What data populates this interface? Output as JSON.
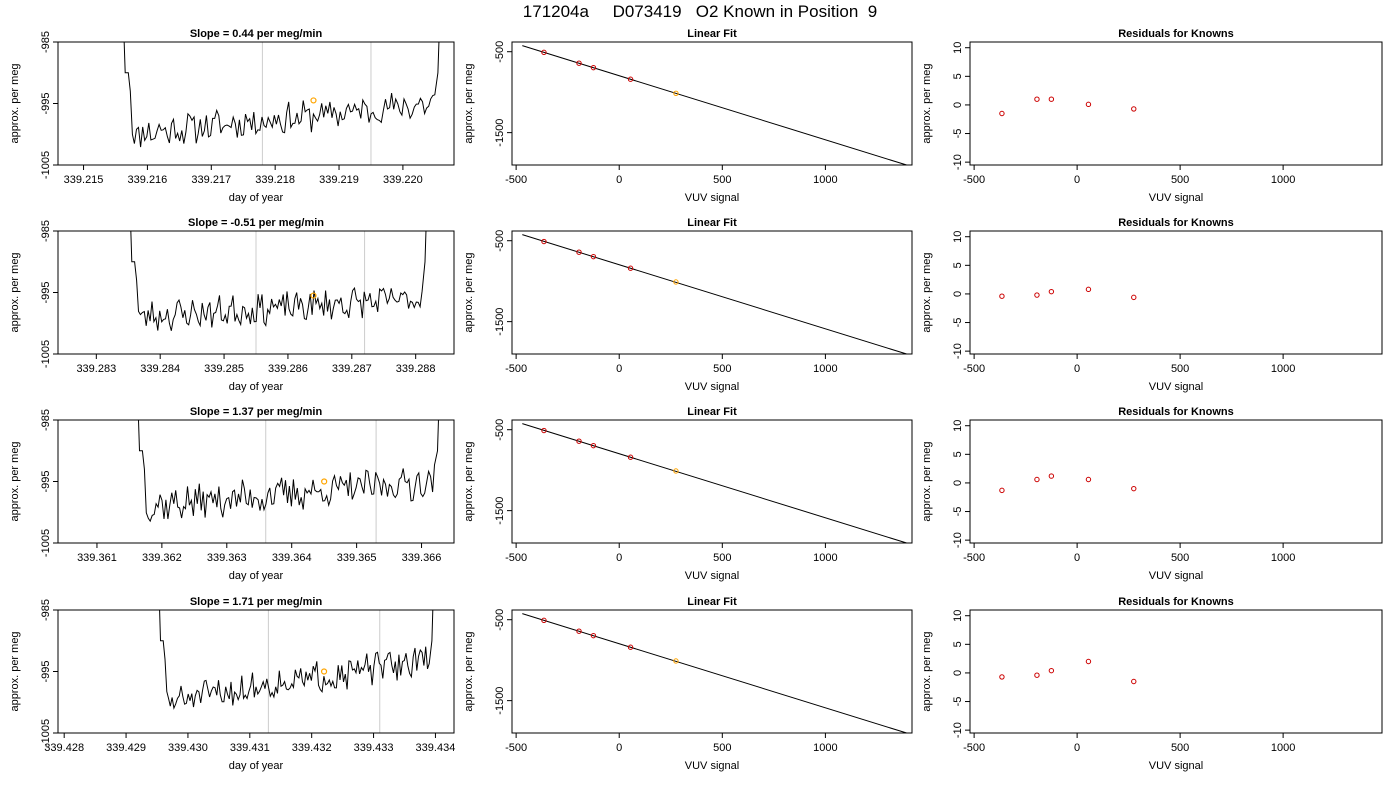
{
  "page_title": "171204a     D073419   O2 Known in Position  9",
  "colors": {
    "trace": "#000000",
    "marker": "#ffa500",
    "point": "#cc0000",
    "vline": "#cccccc",
    "frame": "#000000"
  },
  "chart_data": [
    {
      "type": "line",
      "title": "Slope =  0.44  per meg/min",
      "xlabel": "day of year",
      "ylabel": "approx. per meg",
      "xlim": [
        339.2146,
        339.2208
      ],
      "ylim": [
        -1005,
        -985
      ],
      "xticks": [
        "339.215",
        "339.216",
        "339.217",
        "339.218",
        "339.219",
        "339.220"
      ],
      "yticks": [
        "-1005",
        "-995",
        "-985"
      ],
      "vlines": [
        339.2178,
        339.2195
      ],
      "marker": {
        "x": 339.2186,
        "y": -994.5
      },
      "series": [
        {
          "x_start": 339.2157,
          "x_end": 339.2205,
          "base_start": -1000,
          "base_end": -995,
          "noise": 2.2,
          "seed": 11,
          "spike_start": -975,
          "spike_end": -975
        }
      ]
    },
    {
      "type": "scatter",
      "title": "Linear Fit",
      "xlabel": "VUV signal",
      "ylabel": "approx. per meg",
      "xlim": [
        -520,
        1420
      ],
      "ylim": [
        -1900,
        -380
      ],
      "xticks": [
        "-500",
        "0",
        "500",
        "1000"
      ],
      "yticks": [
        "-500",
        "-1500"
      ],
      "line": {
        "x": [
          -470,
          1400
        ],
        "y": [
          -425,
          -1905
        ]
      },
      "points": [
        {
          "x": -365,
          "y": -508
        },
        {
          "x": -195,
          "y": -642
        },
        {
          "x": -125,
          "y": -697
        },
        {
          "x": 55,
          "y": -840
        },
        {
          "x": 275,
          "y": -1014
        }
      ],
      "highlight_index": 4
    },
    {
      "type": "scatter",
      "title": "Residuals for Knowns",
      "xlabel": "VUV signal",
      "ylabel": "approx. per meg",
      "xlim": [
        -520,
        1480
      ],
      "ylim": [
        -10.5,
        11
      ],
      "xticks": [
        "-500",
        "0",
        "500",
        "1000"
      ],
      "yticks": [
        "-10",
        "-5",
        "0",
        "5",
        "10"
      ],
      "points": [
        {
          "x": -365,
          "y": -1.5
        },
        {
          "x": -195,
          "y": 1.0
        },
        {
          "x": -125,
          "y": 1.0
        },
        {
          "x": 55,
          "y": 0.1
        },
        {
          "x": 275,
          "y": -0.7
        }
      ]
    },
    {
      "type": "line",
      "title": "Slope =  -0.51  per meg/min",
      "xlabel": "day of year",
      "ylabel": "approx. per meg",
      "xlim": [
        339.2824,
        339.2886
      ],
      "ylim": [
        -1005,
        -985
      ],
      "xticks": [
        "339.283",
        "339.284",
        "339.285",
        "339.286",
        "339.287",
        "339.288"
      ],
      "yticks": [
        "-1005",
        "-995",
        "-985"
      ],
      "vlines": [
        339.2855,
        339.2872
      ],
      "marker": {
        "x": 339.2864,
        "y": -995.5
      },
      "series": [
        {
          "x_start": 339.2836,
          "x_end": 339.2881,
          "base_start": -999,
          "base_end": -996,
          "noise": 2.2,
          "seed": 23,
          "spike_start": -975,
          "spike_end": -975
        }
      ]
    },
    {
      "type": "scatter",
      "title": "Linear Fit",
      "xlabel": "VUV signal",
      "ylabel": "approx. per meg",
      "xlim": [
        -520,
        1420
      ],
      "ylim": [
        -1900,
        -380
      ],
      "xticks": [
        "-500",
        "0",
        "500",
        "1000"
      ],
      "yticks": [
        "-500",
        "-1500"
      ],
      "line": {
        "x": [
          -470,
          1400
        ],
        "y": [
          -425,
          -1905
        ]
      },
      "points": [
        {
          "x": -365,
          "y": -510
        },
        {
          "x": -195,
          "y": -642
        },
        {
          "x": -125,
          "y": -697
        },
        {
          "x": 55,
          "y": -840
        },
        {
          "x": 275,
          "y": -1010
        }
      ],
      "highlight_index": 4
    },
    {
      "type": "scatter",
      "title": "Residuals for Knowns",
      "xlabel": "VUV signal",
      "ylabel": "approx. per meg",
      "xlim": [
        -520,
        1480
      ],
      "ylim": [
        -10.5,
        11
      ],
      "xticks": [
        "-500",
        "0",
        "500",
        "1000"
      ],
      "yticks": [
        "-10",
        "-5",
        "0",
        "5",
        "10"
      ],
      "points": [
        {
          "x": -365,
          "y": -0.4
        },
        {
          "x": -195,
          "y": -0.2
        },
        {
          "x": -125,
          "y": 0.4
        },
        {
          "x": 55,
          "y": 0.8
        },
        {
          "x": 275,
          "y": -0.6
        }
      ]
    },
    {
      "type": "line",
      "title": "Slope =  1.37  per meg/min",
      "xlabel": "day of year",
      "ylabel": "approx. per meg",
      "xlim": [
        339.3604,
        339.3665
      ],
      "ylim": [
        -1005,
        -985
      ],
      "xticks": [
        "339.361",
        "339.362",
        "339.363",
        "339.364",
        "339.365",
        "339.366"
      ],
      "yticks": [
        "-1005",
        "-995",
        "-985"
      ],
      "vlines": [
        339.3636,
        339.3653
      ],
      "marker": {
        "x": 339.3645,
        "y": -995.0
      },
      "series": [
        {
          "x_start": 339.3617,
          "x_end": 339.3662,
          "base_start": -999,
          "base_end": -995,
          "noise": 2.5,
          "seed": 37,
          "spike_start": -975,
          "spike_end": -975
        }
      ]
    },
    {
      "type": "scatter",
      "title": "Linear Fit",
      "xlabel": "VUV signal",
      "ylabel": "approx. per meg",
      "xlim": [
        -520,
        1420
      ],
      "ylim": [
        -1900,
        -380
      ],
      "xticks": [
        "-500",
        "0",
        "500",
        "1000"
      ],
      "yticks": [
        "-500",
        "-1500"
      ],
      "line": {
        "x": [
          -470,
          1400
        ],
        "y": [
          -425,
          -1905
        ]
      },
      "points": [
        {
          "x": -365,
          "y": -510
        },
        {
          "x": -195,
          "y": -642
        },
        {
          "x": -125,
          "y": -697
        },
        {
          "x": 55,
          "y": -840
        },
        {
          "x": 275,
          "y": -1010
        }
      ],
      "highlight_index": 4
    },
    {
      "type": "scatter",
      "title": "Residuals for Knowns",
      "xlabel": "VUV signal",
      "ylabel": "approx. per meg",
      "xlim": [
        -520,
        1480
      ],
      "ylim": [
        -10.5,
        11
      ],
      "xticks": [
        "-500",
        "0",
        "500",
        "1000"
      ],
      "yticks": [
        "-10",
        "-5",
        "0",
        "5",
        "10"
      ],
      "points": [
        {
          "x": -365,
          "y": -1.3
        },
        {
          "x": -195,
          "y": 0.6
        },
        {
          "x": -125,
          "y": 1.2
        },
        {
          "x": 55,
          "y": 0.6
        },
        {
          "x": 275,
          "y": -1.0
        }
      ]
    },
    {
      "type": "line",
      "title": "Slope =  1.71  per meg/min",
      "xlabel": "day of year",
      "ylabel": "approx. per meg",
      "xlim": [
        339.4279,
        339.4343
      ],
      "ylim": [
        -1005,
        -985
      ],
      "xticks": [
        "339.428",
        "339.429",
        "339.430",
        "339.431",
        "339.432",
        "339.433",
        "339.434"
      ],
      "yticks": [
        "-1005",
        "-995",
        "-985"
      ],
      "vlines": [
        339.4313,
        339.4331
      ],
      "marker": {
        "x": 339.4322,
        "y": -995.0
      },
      "series": [
        {
          "x_start": 339.4296,
          "x_end": 339.4339,
          "base_start": -1000,
          "base_end": -993,
          "noise": 2.2,
          "seed": 51,
          "spike_start": -975,
          "spike_end": -975
        }
      ]
    },
    {
      "type": "scatter",
      "title": "Linear Fit",
      "xlabel": "VUV signal",
      "ylabel": "approx. per meg",
      "xlim": [
        -520,
        1420
      ],
      "ylim": [
        -1900,
        -380
      ],
      "xticks": [
        "-500",
        "0",
        "500",
        "1000"
      ],
      "yticks": [
        "-500",
        "-1500"
      ],
      "line": {
        "x": [
          -470,
          1400
        ],
        "y": [
          -425,
          -1905
        ]
      },
      "points": [
        {
          "x": -365,
          "y": -508
        },
        {
          "x": -195,
          "y": -642
        },
        {
          "x": -125,
          "y": -697
        },
        {
          "x": 55,
          "y": -840
        },
        {
          "x": 275,
          "y": -1010
        }
      ],
      "highlight_index": 4
    },
    {
      "type": "scatter",
      "title": "Residuals for Knowns",
      "xlabel": "VUV signal",
      "ylabel": "approx. per meg",
      "xlim": [
        -520,
        1480
      ],
      "ylim": [
        -10.5,
        11
      ],
      "xticks": [
        "-500",
        "0",
        "500",
        "1000"
      ],
      "yticks": [
        "-10",
        "-5",
        "0",
        "5",
        "10"
      ],
      "points": [
        {
          "x": -365,
          "y": -0.7
        },
        {
          "x": -195,
          "y": -0.4
        },
        {
          "x": -125,
          "y": 0.4
        },
        {
          "x": 55,
          "y": 2.0
        },
        {
          "x": 275,
          "y": -1.5
        }
      ]
    }
  ]
}
